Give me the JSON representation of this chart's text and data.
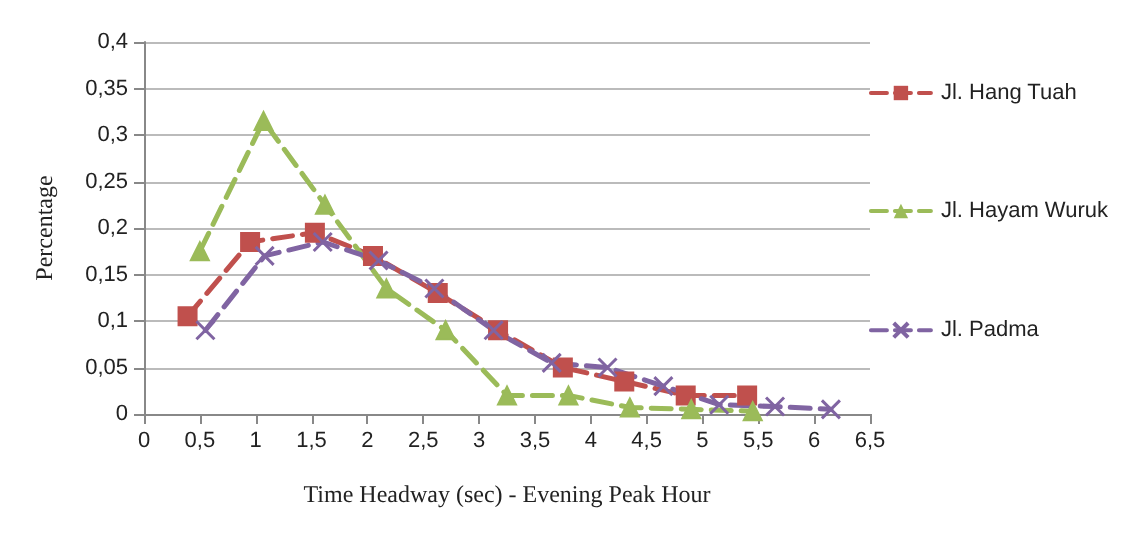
{
  "chart_data": {
    "type": "line",
    "xlabel": "Time Headway (sec) - Evening Peak Hour",
    "ylabel": "Percentage",
    "xlim": [
      0,
      6.5
    ],
    "xticks": [
      0,
      {
        "value": 0.5,
        "label": "0,5"
      },
      1,
      {
        "value": 1.5,
        "label": "1,5"
      },
      2,
      {
        "value": 2.5,
        "label": "2,5"
      },
      3,
      {
        "value": 3.5,
        "label": "3,5"
      },
      4,
      {
        "value": 4.5,
        "label": "4,5"
      },
      5,
      {
        "value": 5.5,
        "label": "5,5"
      },
      6,
      {
        "value": 6.5,
        "label": "6,5"
      }
    ],
    "ylim": [
      0,
      0.4
    ],
    "yticks": [
      0,
      {
        "value": 0.05,
        "label": "0,05"
      },
      {
        "value": 0.1,
        "label": "0,1"
      },
      {
        "value": 0.15,
        "label": "0,15"
      },
      {
        "value": 0.2,
        "label": "0,2"
      },
      {
        "value": 0.25,
        "label": "0,25"
      },
      {
        "value": 0.3,
        "label": "0,3"
      },
      {
        "value": 0.35,
        "label": "0,35"
      },
      {
        "value": 0.4,
        "label": "0,4"
      }
    ],
    "grid": "y",
    "legend": "right",
    "line_style": "dashed",
    "series": [
      {
        "name": "Jl. Hang Tuah",
        "color": "#c0504d",
        "marker": "square",
        "x": [
          0.39,
          0.95,
          1.53,
          2.05,
          2.63,
          3.17,
          3.75,
          4.3,
          4.85,
          5.4
        ],
        "values": [
          0.105,
          0.185,
          0.195,
          0.17,
          0.13,
          0.09,
          0.05,
          0.035,
          0.02,
          0.02
        ]
      },
      {
        "name": "Jl. Hayam Wuruk",
        "color": "#9bbb59",
        "marker": "triangle",
        "x": [
          0.5,
          1.07,
          1.62,
          2.17,
          2.7,
          3.25,
          3.8,
          4.35,
          4.9,
          5.45
        ],
        "values": [
          0.175,
          0.315,
          0.225,
          0.135,
          0.09,
          0.02,
          0.02,
          0.007,
          0.005,
          0.003
        ]
      },
      {
        "name": "Jl. Padma",
        "color": "#8064a2",
        "marker": "cross",
        "x": [
          0.55,
          1.08,
          1.6,
          2.1,
          2.6,
          3.13,
          3.65,
          4.15,
          4.65,
          5.15,
          5.65,
          6.15
        ],
        "values": [
          0.09,
          0.17,
          0.185,
          0.165,
          0.135,
          0.09,
          0.055,
          0.05,
          0.03,
          0.01,
          0.008,
          0.005
        ]
      }
    ]
  }
}
